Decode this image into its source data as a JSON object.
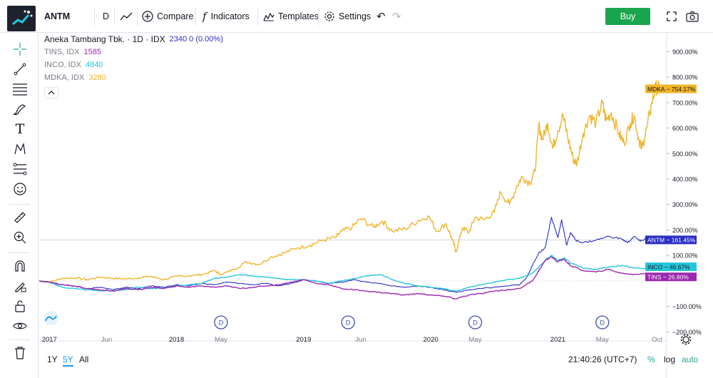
{
  "toolbar": {
    "symbol": "ANTM",
    "interval": "D",
    "compare_label": "Compare",
    "indicators_label": "Indicators",
    "templates_label": "Templates",
    "settings_label": "Settings",
    "buy_label": "Buy"
  },
  "legend": {
    "main_title": "Aneka Tambang Tbk. · 1D · IDX",
    "main_value": "2340  0 (0.00%)",
    "compare_items": [
      {
        "label": "TINS, IDX",
        "value": "1585",
        "color": "#9c27b0"
      },
      {
        "label": "INCO, IDX",
        "value": "4840",
        "color": "#26c6da"
      },
      {
        "label": "MDKA, IDX",
        "value": "3280",
        "color": "#f0b429"
      }
    ]
  },
  "price_axis": {
    "ticks": [
      "900.00%",
      "800.00%",
      "700.00%",
      "600.00%",
      "500.00%",
      "400.00%",
      "300.00%",
      "200.00%",
      "100.00%",
      "−100.00%",
      "−200.00%"
    ],
    "badges": [
      {
        "symbol": "MDKA",
        "value": "754.17%",
        "color": "#f0b429",
        "text_color": "#131722"
      },
      {
        "symbol": "ANTM",
        "value": "161.45%",
        "color": "#2a2ec4",
        "text_color": "#ffffff"
      },
      {
        "symbol": "INCO",
        "value": "46.67%",
        "color": "#26c6da",
        "text_color": "#131722"
      },
      {
        "symbol": "TINS",
        "value": "26.80%",
        "color": "#9c27b0",
        "text_color": "#ffffff"
      }
    ]
  },
  "time_axis": {
    "ticks": [
      "2017",
      "Jun",
      "2018",
      "May",
      "2019",
      "Jun",
      "2020",
      "May",
      "2021",
      "May",
      "Oct"
    ]
  },
  "dividend_marker": "D",
  "bottom_bar": {
    "ranges": [
      "1Y",
      "5Y",
      "All"
    ],
    "active_range": "5Y",
    "clock": "21:40:26 (UTC+7)",
    "percent_label": "%",
    "log_label": "log",
    "auto_label": "auto"
  },
  "chart_data": {
    "type": "line",
    "scale": "percent",
    "ylim": [
      -230,
      960
    ],
    "xlim": [
      2016.92,
      2021.8
    ],
    "series": [
      {
        "name": "MDKA",
        "color": "#f0b429",
        "points": [
          [
            2016.92,
            2
          ],
          [
            2017.0,
            -5
          ],
          [
            2017.1,
            10
          ],
          [
            2017.2,
            12
          ],
          [
            2017.3,
            5
          ],
          [
            2017.4,
            15
          ],
          [
            2017.5,
            10
          ],
          [
            2017.6,
            8
          ],
          [
            2017.7,
            12
          ],
          [
            2017.8,
            18
          ],
          [
            2017.9,
            5
          ],
          [
            2018.0,
            18
          ],
          [
            2018.1,
            20
          ],
          [
            2018.2,
            25
          ],
          [
            2018.3,
            40
          ],
          [
            2018.35,
            25
          ],
          [
            2018.45,
            45
          ],
          [
            2018.55,
            75
          ],
          [
            2018.65,
            65
          ],
          [
            2018.75,
            95
          ],
          [
            2018.85,
            110
          ],
          [
            2018.95,
            130
          ],
          [
            2019.05,
            140
          ],
          [
            2019.15,
            160
          ],
          [
            2019.25,
            170
          ],
          [
            2019.3,
            195
          ],
          [
            2019.38,
            210
          ],
          [
            2019.45,
            245
          ],
          [
            2019.55,
            210
          ],
          [
            2019.62,
            235
          ],
          [
            2019.7,
            195
          ],
          [
            2019.8,
            205
          ],
          [
            2019.9,
            235
          ],
          [
            2019.98,
            255
          ],
          [
            2020.05,
            195
          ],
          [
            2020.12,
            225
          ],
          [
            2020.17,
            160
          ],
          [
            2020.2,
            115
          ],
          [
            2020.25,
            210
          ],
          [
            2020.3,
            190
          ],
          [
            2020.35,
            250
          ],
          [
            2020.42,
            240
          ],
          [
            2020.5,
            270
          ],
          [
            2020.55,
            350
          ],
          [
            2020.62,
            300
          ],
          [
            2020.68,
            375
          ],
          [
            2020.72,
            410
          ],
          [
            2020.78,
            385
          ],
          [
            2020.82,
            430
          ],
          [
            2020.85,
            610
          ],
          [
            2020.88,
            555
          ],
          [
            2020.92,
            620
          ],
          [
            2020.96,
            520
          ],
          [
            2021.0,
            590
          ],
          [
            2021.04,
            650
          ],
          [
            2021.08,
            560
          ],
          [
            2021.12,
            480
          ],
          [
            2021.15,
            460
          ],
          [
            2021.2,
            580
          ],
          [
            2021.25,
            650
          ],
          [
            2021.3,
            620
          ],
          [
            2021.35,
            700
          ],
          [
            2021.38,
            630
          ],
          [
            2021.42,
            660
          ],
          [
            2021.48,
            580
          ],
          [
            2021.52,
            540
          ],
          [
            2021.57,
            620
          ],
          [
            2021.6,
            650
          ],
          [
            2021.64,
            550
          ],
          [
            2021.66,
            520
          ],
          [
            2021.7,
            600
          ],
          [
            2021.74,
            700
          ],
          [
            2021.77,
            760
          ],
          [
            2021.8,
            754
          ]
        ]
      },
      {
        "name": "ANTM",
        "color": "#2a2ec4",
        "points": [
          [
            2016.92,
            0
          ],
          [
            2017.0,
            -5
          ],
          [
            2017.1,
            -15
          ],
          [
            2017.2,
            -20
          ],
          [
            2017.3,
            -30
          ],
          [
            2017.4,
            -25
          ],
          [
            2017.5,
            -35
          ],
          [
            2017.6,
            -25
          ],
          [
            2017.7,
            -30
          ],
          [
            2017.8,
            -20
          ],
          [
            2017.9,
            -25
          ],
          [
            2018.0,
            -15
          ],
          [
            2018.1,
            -20
          ],
          [
            2018.2,
            -10
          ],
          [
            2018.3,
            -15
          ],
          [
            2018.4,
            -5
          ],
          [
            2018.5,
            -10
          ],
          [
            2018.6,
            -15
          ],
          [
            2018.7,
            -10
          ],
          [
            2018.8,
            -20
          ],
          [
            2018.9,
            -10
          ],
          [
            2019.0,
            5
          ],
          [
            2019.1,
            0
          ],
          [
            2019.2,
            -10
          ],
          [
            2019.3,
            -5
          ],
          [
            2019.4,
            5
          ],
          [
            2019.5,
            -5
          ],
          [
            2019.6,
            -10
          ],
          [
            2019.7,
            -20
          ],
          [
            2019.8,
            -25
          ],
          [
            2019.9,
            -20
          ],
          [
            2020.0,
            -25
          ],
          [
            2020.1,
            -35
          ],
          [
            2020.2,
            -45
          ],
          [
            2020.3,
            -35
          ],
          [
            2020.4,
            -30
          ],
          [
            2020.5,
            -25
          ],
          [
            2020.6,
            -20
          ],
          [
            2020.7,
            -15
          ],
          [
            2020.75,
            10
          ],
          [
            2020.8,
            60
          ],
          [
            2020.85,
            110
          ],
          [
            2020.9,
            130
          ],
          [
            2020.95,
            250
          ],
          [
            2021.0,
            170
          ],
          [
            2021.03,
            240
          ],
          [
            2021.07,
            140
          ],
          [
            2021.1,
            190
          ],
          [
            2021.14,
            160
          ],
          [
            2021.2,
            150
          ],
          [
            2021.3,
            160
          ],
          [
            2021.4,
            175
          ],
          [
            2021.5,
            165
          ],
          [
            2021.55,
            150
          ],
          [
            2021.6,
            175
          ],
          [
            2021.65,
            155
          ],
          [
            2021.7,
            170
          ],
          [
            2021.75,
            165
          ],
          [
            2021.8,
            161
          ]
        ]
      },
      {
        "name": "INCO",
        "color": "#26c6da",
        "points": [
          [
            2016.92,
            0
          ],
          [
            2017.0,
            -5
          ],
          [
            2017.1,
            -25
          ],
          [
            2017.2,
            -30
          ],
          [
            2017.3,
            -35
          ],
          [
            2017.4,
            -40
          ],
          [
            2017.5,
            -38
          ],
          [
            2017.6,
            -35
          ],
          [
            2017.7,
            -25
          ],
          [
            2017.8,
            -30
          ],
          [
            2017.9,
            -28
          ],
          [
            2018.0,
            -20
          ],
          [
            2018.1,
            -15
          ],
          [
            2018.2,
            -10
          ],
          [
            2018.3,
            10
          ],
          [
            2018.4,
            15
          ],
          [
            2018.5,
            25
          ],
          [
            2018.6,
            20
          ],
          [
            2018.7,
            15
          ],
          [
            2018.8,
            10
          ],
          [
            2018.9,
            5
          ],
          [
            2019.0,
            5
          ],
          [
            2019.1,
            0
          ],
          [
            2019.2,
            -10
          ],
          [
            2019.3,
            0
          ],
          [
            2019.4,
            10
          ],
          [
            2019.5,
            20
          ],
          [
            2019.6,
            25
          ],
          [
            2019.7,
            5
          ],
          [
            2019.8,
            -10
          ],
          [
            2019.9,
            -20
          ],
          [
            2020.0,
            -25
          ],
          [
            2020.1,
            -30
          ],
          [
            2020.2,
            -40
          ],
          [
            2020.3,
            -25
          ],
          [
            2020.4,
            -15
          ],
          [
            2020.5,
            -5
          ],
          [
            2020.6,
            5
          ],
          [
            2020.7,
            10
          ],
          [
            2020.8,
            30
          ],
          [
            2020.9,
            80
          ],
          [
            2020.95,
            100
          ],
          [
            2021.0,
            80
          ],
          [
            2021.05,
            90
          ],
          [
            2021.1,
            70
          ],
          [
            2021.2,
            50
          ],
          [
            2021.3,
            45
          ],
          [
            2021.4,
            55
          ],
          [
            2021.5,
            60
          ],
          [
            2021.6,
            50
          ],
          [
            2021.7,
            50
          ],
          [
            2021.8,
            47
          ]
        ]
      },
      {
        "name": "TINS",
        "color": "#9c27b0",
        "points": [
          [
            2016.92,
            0
          ],
          [
            2017.0,
            -5
          ],
          [
            2017.1,
            -15
          ],
          [
            2017.2,
            -20
          ],
          [
            2017.3,
            -30
          ],
          [
            2017.4,
            -35
          ],
          [
            2017.5,
            -40
          ],
          [
            2017.6,
            -30
          ],
          [
            2017.7,
            -35
          ],
          [
            2017.8,
            -25
          ],
          [
            2017.9,
            -30
          ],
          [
            2018.0,
            -20
          ],
          [
            2018.1,
            -25
          ],
          [
            2018.2,
            -20
          ],
          [
            2018.3,
            -25
          ],
          [
            2018.4,
            -20
          ],
          [
            2018.5,
            -30
          ],
          [
            2018.6,
            -25
          ],
          [
            2018.7,
            -20
          ],
          [
            2018.8,
            -15
          ],
          [
            2018.9,
            -5
          ],
          [
            2019.0,
            5
          ],
          [
            2019.1,
            -10
          ],
          [
            2019.2,
            -15
          ],
          [
            2019.3,
            -30
          ],
          [
            2019.4,
            -35
          ],
          [
            2019.5,
            -40
          ],
          [
            2019.6,
            -45
          ],
          [
            2019.7,
            -50
          ],
          [
            2019.8,
            -55
          ],
          [
            2019.9,
            -50
          ],
          [
            2020.0,
            -55
          ],
          [
            2020.1,
            -60
          ],
          [
            2020.2,
            -70
          ],
          [
            2020.3,
            -55
          ],
          [
            2020.4,
            -50
          ],
          [
            2020.5,
            -40
          ],
          [
            2020.6,
            -35
          ],
          [
            2020.7,
            -30
          ],
          [
            2020.8,
            0
          ],
          [
            2020.85,
            40
          ],
          [
            2020.9,
            80
          ],
          [
            2020.95,
            95
          ],
          [
            2021.0,
            75
          ],
          [
            2021.05,
            85
          ],
          [
            2021.1,
            60
          ],
          [
            2021.2,
            40
          ],
          [
            2021.3,
            35
          ],
          [
            2021.4,
            45
          ],
          [
            2021.5,
            30
          ],
          [
            2021.6,
            25
          ],
          [
            2021.7,
            30
          ],
          [
            2021.8,
            27
          ]
        ]
      }
    ],
    "dividend_marker_positions": [
      2018.35,
      2019.35,
      2020.35,
      2021.35
    ],
    "time_tick_positions": [
      2017.0,
      2017.45,
      2018.0,
      2018.35,
      2019.0,
      2019.45,
      2020.0,
      2020.35,
      2021.0,
      2021.35,
      2021.78
    ],
    "reference_line": 161
  }
}
